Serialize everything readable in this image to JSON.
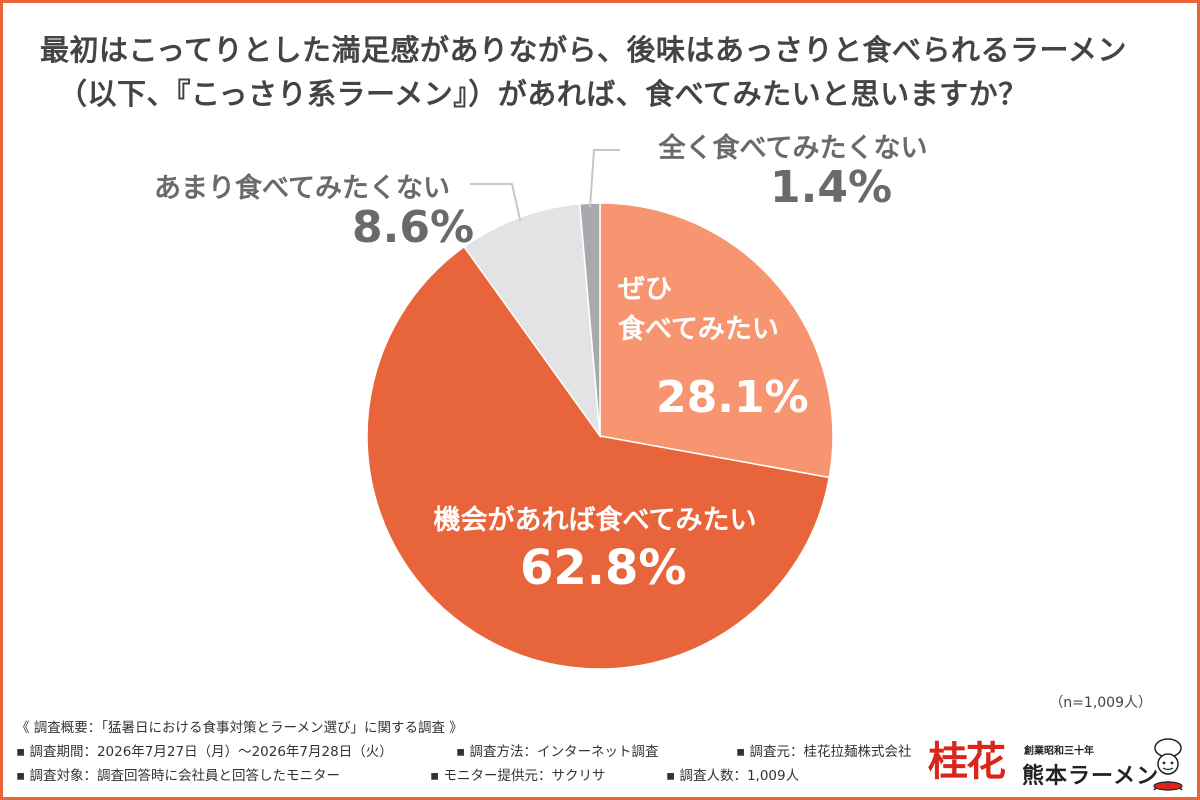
{
  "question": {
    "line1": "最初はこってりとした満足感がありながら、後味はあっさりと食べられるラーメン",
    "line2": "（以下、『こっさり系ラーメン』）があれば、食べてみたいと思いますか？"
  },
  "chart_data": {
    "type": "pie",
    "slices": [
      {
        "label": "ぜひ\n食べてみたい",
        "value": 28.1,
        "value_label": "28.1%",
        "color": "#f79570"
      },
      {
        "label": "機会があれば食べてみたい",
        "value": 62.8,
        "value_label": "62.8%",
        "color": "#e8643a"
      },
      {
        "label": "あまり食べてみたくない",
        "value": 8.6,
        "value_label": "8.6%",
        "color": "#e3e3e6"
      },
      {
        "label": "全く食べてみたくない",
        "value": 1.4,
        "value_label": "1.4%",
        "color": "#a9a9ad"
      }
    ],
    "start": "12 o'clock",
    "direction": "clockwise"
  },
  "n_note": "（n=1,009人）",
  "footer": {
    "summary": "《 調査概要：「猛暑日における食事対策とラーメン選び」に関する調査 》",
    "period": "▪ 調査期間：2026年7月27日（月）〜2026年7月28日（火）",
    "method": "▪ 調査方法：インターネット調査",
    "source": "▪ 調査元：桂花拉麺株式会社",
    "target": "▪ 調査対象：調査回答時に会社員と回答したモニター",
    "provider": "▪ モニター提供元：サクリサ",
    "count": "▪ 調査人数：1,009人"
  },
  "logo": {
    "kanji": "桂花",
    "sub": "創業昭和三十年",
    "brand": "熊本ラーメン",
    "icon": "chef-mascot-icon"
  }
}
